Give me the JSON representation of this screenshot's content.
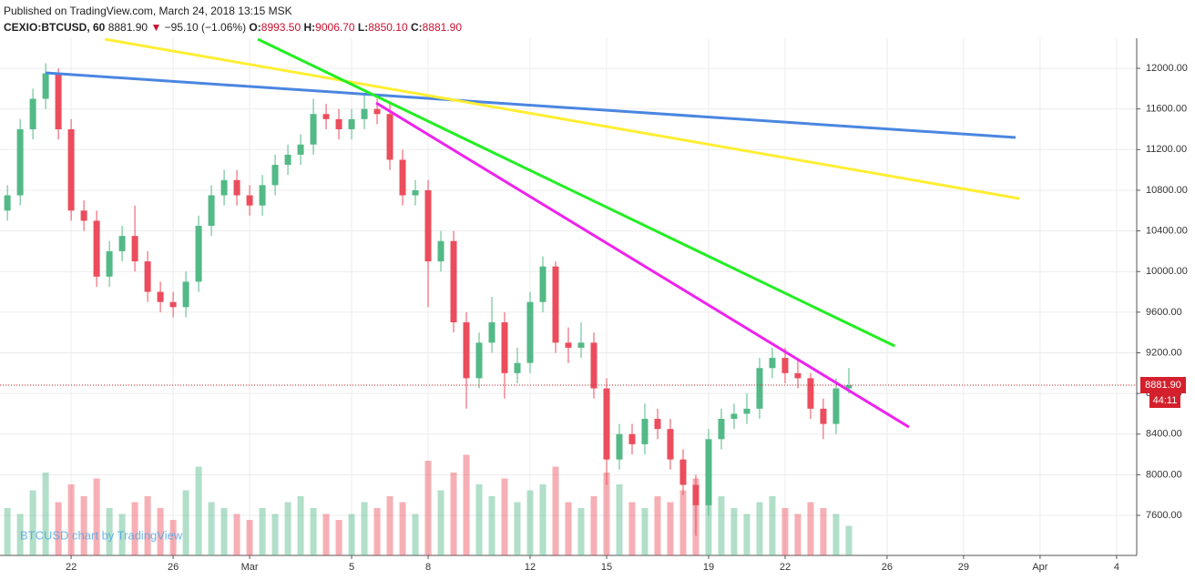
{
  "header": {
    "published": "Published on TradingView.com, March 24, 2018 13:15 MSK",
    "symbol": "CEXIO:BTCUSD, 60",
    "last": "8881.90",
    "change": "−95.10 (−1.06%)",
    "open_label": "O:",
    "open": "8993.50",
    "high_label": "H:",
    "high": "9006.70",
    "low_label": "L:",
    "low": "8850.10",
    "close_label": "C:",
    "close": "8881.90",
    "countdown": "44:11",
    "watermark": "BTCUSD chart by TradingView"
  },
  "chart_data": {
    "type": "candlestick",
    "x": [
      -2.5,
      -2,
      -1.5,
      -1,
      -0.5,
      0,
      0.5,
      1,
      1.5,
      2,
      2.5,
      3,
      3.5,
      4,
      4.5,
      5,
      5.5,
      6,
      6.5,
      7,
      7.5,
      8,
      8.5,
      9,
      9.5,
      10,
      10.5,
      11,
      11.5,
      12,
      12.5,
      13,
      13.5,
      14,
      14.5,
      15,
      15.5,
      16,
      16.5,
      17,
      17.5,
      18,
      18.5,
      19,
      19.5,
      20,
      20.5,
      21,
      21.5,
      22,
      22.5,
      23,
      23.5,
      24,
      24.5,
      25,
      25.5,
      26,
      26.5,
      27,
      27.5,
      28,
      28.5,
      29,
      29.5,
      30,
      30.5
    ],
    "open": [
      10600,
      10750,
      11400,
      11700,
      11950,
      11400,
      10600,
      10500,
      9950,
      10200,
      10350,
      10100,
      9800,
      9700,
      9650,
      9900,
      10450,
      10750,
      10900,
      10750,
      10650,
      10850,
      11050,
      11150,
      11250,
      11550,
      11500,
      11400,
      11500,
      11600,
      11550,
      11100,
      10750,
      10800,
      10100,
      10300,
      9500,
      8950,
      9300,
      9500,
      9000,
      9100,
      9700,
      10050,
      9300,
      9250,
      9300,
      8850,
      8150,
      8400,
      8300,
      8550,
      8450,
      8150,
      7900,
      7700,
      8350,
      8550,
      8600,
      8650,
      9050,
      9150,
      9000,
      8950,
      8650,
      8500,
      8850
    ],
    "high": [
      10850,
      11500,
      11800,
      12050,
      12000,
      11500,
      10700,
      10600,
      10300,
      10450,
      10650,
      10200,
      9900,
      9800,
      10000,
      10550,
      10850,
      11000,
      11000,
      10850,
      10950,
      11150,
      11250,
      11350,
      11700,
      11650,
      11600,
      11600,
      11750,
      11700,
      11650,
      11200,
      10900,
      10900,
      10400,
      10400,
      9600,
      9400,
      9750,
      9600,
      9250,
      9800,
      10150,
      10100,
      9450,
      9500,
      9400,
      8950,
      8500,
      8500,
      8700,
      8650,
      8550,
      8250,
      8000,
      8450,
      8650,
      8700,
      8800,
      9150,
      9250,
      9250,
      9150,
      9000,
      8750,
      8950,
      9050
    ],
    "low": [
      10500,
      10650,
      11300,
      11600,
      11300,
      10500,
      10400,
      9850,
      9850,
      10100,
      10000,
      9700,
      9600,
      9550,
      9550,
      9800,
      10350,
      10650,
      10650,
      10550,
      10550,
      10750,
      10950,
      11050,
      11150,
      11400,
      11300,
      11300,
      11400,
      11450,
      11000,
      10650,
      10650,
      9650,
      10000,
      9400,
      8650,
      8850,
      9200,
      8750,
      8900,
      9000,
      9600,
      9200,
      9100,
      9150,
      8750,
      7900,
      8050,
      8200,
      8200,
      8350,
      8050,
      7800,
      7400,
      7600,
      8250,
      8450,
      8500,
      8550,
      8950,
      8900,
      8850,
      8550,
      8350,
      8400,
      8800
    ],
    "close": [
      10750,
      11400,
      11700,
      11950,
      11400,
      10600,
      10500,
      9950,
      10200,
      10350,
      10100,
      9800,
      9700,
      9650,
      9900,
      10450,
      10750,
      10900,
      10750,
      10650,
      10850,
      11050,
      11150,
      11250,
      11550,
      11500,
      11400,
      11500,
      11600,
      11550,
      11100,
      10750,
      10800,
      10100,
      10300,
      9500,
      8950,
      9300,
      9500,
      9000,
      9100,
      9700,
      10050,
      9300,
      9250,
      9300,
      8850,
      8150,
      8400,
      8300,
      8550,
      8450,
      8150,
      7900,
      7700,
      8350,
      8550,
      8600,
      8650,
      9050,
      9150,
      9000,
      8950,
      8650,
      8500,
      8850,
      8881.9
    ],
    "volume": [
      40,
      35,
      55,
      70,
      45,
      60,
      50,
      65,
      40,
      35,
      45,
      50,
      40,
      30,
      55,
      75,
      45,
      40,
      35,
      30,
      40,
      35,
      45,
      50,
      40,
      35,
      30,
      35,
      45,
      40,
      50,
      45,
      35,
      80,
      55,
      70,
      85,
      60,
      50,
      65,
      45,
      55,
      60,
      75,
      45,
      40,
      50,
      70,
      60,
      45,
      40,
      50,
      45,
      55,
      65,
      85,
      50,
      40,
      35,
      45,
      50,
      40,
      35,
      45,
      40,
      35,
      25
    ],
    "volume_ylim": [
      0,
      100
    ],
    "up_color": "#53b987",
    "down_color": "#eb4d5c",
    "lines": [
      {
        "color": "#4a86e0",
        "x": [
          -1,
          37.04
        ],
        "y": [
          11955,
          11319
        ]
      },
      {
        "color": "#ffee33",
        "x": [
          1.32,
          37.2
        ],
        "y": [
          12287,
          10718
        ]
      },
      {
        "color": "#22ee22",
        "x": [
          7.32,
          32.3
        ],
        "y": [
          12287,
          9267
        ]
      },
      {
        "color": "#ee22ee",
        "x": [
          11.96,
          32.86
        ],
        "y": [
          11660,
          8469
        ]
      }
    ],
    "xlim": [
      -2.79,
      41.79
    ],
    "xticks": [
      {
        "value": 0,
        "label": "22"
      },
      {
        "value": 4,
        "label": "26"
      },
      {
        "value": 7,
        "label": "Mar"
      },
      {
        "value": 11,
        "label": "5"
      },
      {
        "value": 14,
        "label": "8"
      },
      {
        "value": 18,
        "label": "12"
      },
      {
        "value": 21,
        "label": "15"
      },
      {
        "value": 25,
        "label": "19"
      },
      {
        "value": 28,
        "label": "22"
      },
      {
        "value": 32,
        "label": "26"
      },
      {
        "value": 35,
        "label": "29"
      },
      {
        "value": 38,
        "label": "Apr"
      },
      {
        "value": 41,
        "label": "4"
      }
    ],
    "ylim": [
      7206,
      12296
    ],
    "yticks": [
      {
        "value": 7600,
        "label": "7600.00"
      },
      {
        "value": 8000,
        "label": "8000.00"
      },
      {
        "value": 8400,
        "label": "8400.00"
      },
      {
        "value": 8800,
        "label": "8800.00"
      },
      {
        "value": 9200,
        "label": "9200.00"
      },
      {
        "value": 9600,
        "label": "9600.00"
      },
      {
        "value": 10000,
        "label": "10000.00"
      },
      {
        "value": 10400,
        "label": "10400.00"
      },
      {
        "value": 10800,
        "label": "10800.00"
      },
      {
        "value": 11200,
        "label": "11200.00"
      },
      {
        "value": 11600,
        "label": "11600.00"
      },
      {
        "value": 12000,
        "label": "12000.00"
      }
    ],
    "grid": true
  }
}
